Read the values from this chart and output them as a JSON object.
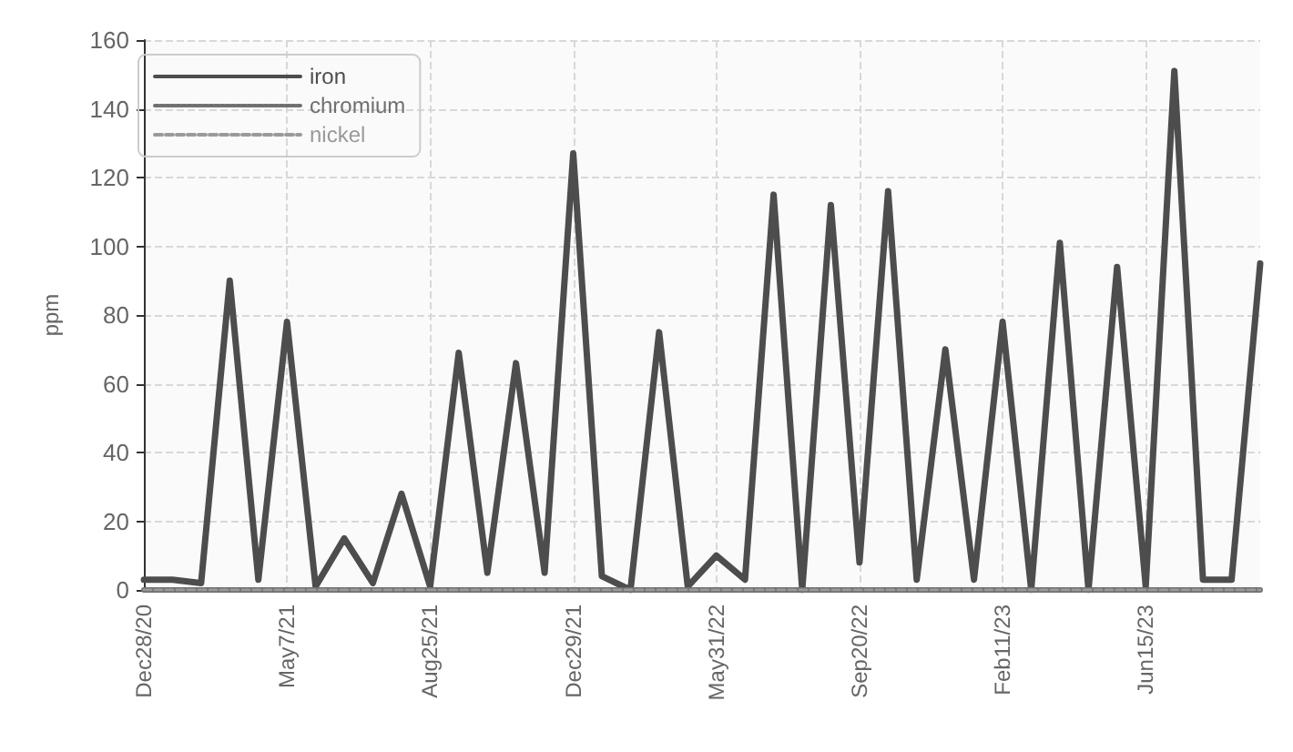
{
  "chart_data": {
    "type": "line",
    "ylabel": "ppm",
    "categories": [
      "Dec28/20",
      null,
      null,
      null,
      null,
      "May7/21",
      null,
      null,
      null,
      null,
      "Aug25/21",
      null,
      null,
      null,
      null,
      "Dec29/21",
      null,
      null,
      null,
      null,
      "May31/22",
      null,
      null,
      null,
      null,
      "Sep20/22",
      null,
      null,
      null,
      null,
      "Feb11/23",
      null,
      null,
      null,
      null,
      "Jun15/23",
      null,
      null,
      null,
      null
    ],
    "series": [
      {
        "name": "iron",
        "color": "#4d4d4d",
        "line_style": "solid",
        "values": [
          3,
          3,
          2,
          90,
          3,
          78,
          1,
          15,
          2,
          28,
          1,
          69,
          5,
          66,
          5,
          127,
          4,
          0,
          75,
          1,
          10,
          3,
          115,
          0,
          112,
          8,
          116,
          3,
          70,
          3,
          78,
          0,
          101,
          0,
          94,
          1,
          151,
          3,
          3,
          95
        ]
      },
      {
        "name": "chromium",
        "color": "#707070",
        "line_style": "dotted",
        "values": [
          0,
          0,
          0,
          0,
          0,
          0,
          0,
          0,
          0,
          0,
          0,
          0,
          0,
          0,
          0,
          0,
          0,
          0,
          0,
          0,
          0,
          0,
          0,
          0,
          0,
          0,
          0,
          0,
          0,
          0,
          0,
          0,
          0,
          0,
          0,
          0,
          0,
          0,
          0,
          0
        ]
      },
      {
        "name": "nickel",
        "color": "#9a9a9a",
        "line_style": "dashed",
        "values": [
          0,
          0,
          0,
          0,
          0,
          0,
          0,
          0,
          0,
          0,
          0,
          0,
          0,
          0,
          0,
          0,
          0,
          0,
          0,
          0,
          0,
          0,
          0,
          0,
          0,
          0,
          0,
          0,
          0,
          0,
          0,
          0,
          0,
          0,
          0,
          0,
          0,
          0,
          0,
          0
        ]
      }
    ],
    "ylim": [
      0,
      160
    ],
    "yticks": [
      0,
      20,
      40,
      60,
      80,
      100,
      120,
      140,
      160
    ],
    "grid": true,
    "legend": "top left",
    "marker": "none"
  }
}
